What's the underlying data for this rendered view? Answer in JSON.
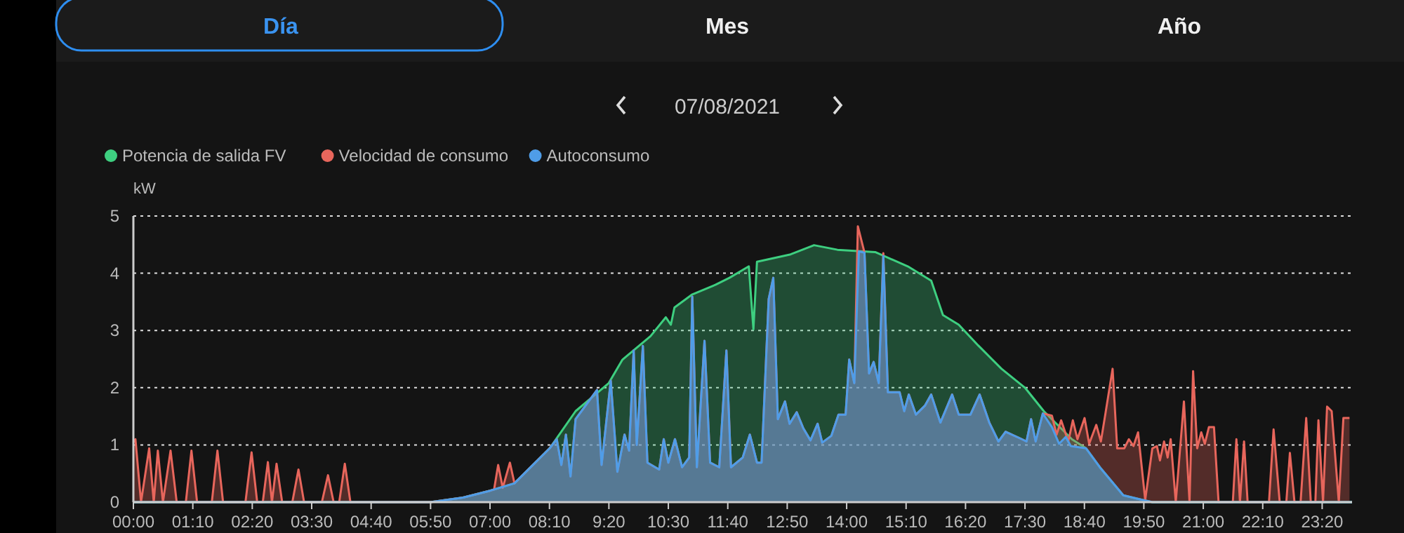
{
  "chart_data": {
    "type": "area",
    "title": "07/08/2021",
    "annotations": [
      "Día",
      "Mes",
      "Año"
    ],
    "ylabel": "kW",
    "xlim": [
      0,
      23.92
    ],
    "ylim": [
      0,
      5
    ],
    "yticks": [
      0,
      1,
      2,
      3,
      4,
      5
    ],
    "xticks": [
      {
        "value": 0,
        "label": "00:00"
      },
      {
        "value": 1.1667,
        "label": "01:10"
      },
      {
        "value": 2.3333,
        "label": "02:20"
      },
      {
        "value": 3.5,
        "label": "03:30"
      },
      {
        "value": 4.6667,
        "label": "04:40"
      },
      {
        "value": 5.8333,
        "label": "05:50"
      },
      {
        "value": 7,
        "label": "07:00"
      },
      {
        "value": 8.1667,
        "label": "08:10"
      },
      {
        "value": 9.3333,
        "label": "9:20"
      },
      {
        "value": 10.5,
        "label": "10:30"
      },
      {
        "value": 11.6667,
        "label": "11:40"
      },
      {
        "value": 12.8333,
        "label": "12:50"
      },
      {
        "value": 14,
        "label": "14:00"
      },
      {
        "value": 15.1667,
        "label": "15:10"
      },
      {
        "value": 16.3333,
        "label": "16:20"
      },
      {
        "value": 17.5,
        "label": "17:30"
      },
      {
        "value": 18.6667,
        "label": "18:40"
      },
      {
        "value": 19.8333,
        "label": "19:50"
      },
      {
        "value": 21,
        "label": "21:00"
      },
      {
        "value": 22.1667,
        "label": "22:10"
      },
      {
        "value": 23.3333,
        "label": "23:20"
      }
    ],
    "grid": "y",
    "legend": "top left",
    "series": [
      {
        "name": "Potencia de salida FV",
        "color": "#3ecf80",
        "x": [
          0,
          5.83,
          6.47,
          7.0,
          7.48,
          8.17,
          8.68,
          9.33,
          9.6,
          10.15,
          10.45,
          10.55,
          10.62,
          10.97,
          11.43,
          11.7,
          12.08,
          12.17,
          12.24,
          12.9,
          13.36,
          13.82,
          14.56,
          15.2,
          15.66,
          15.89,
          16.2,
          16.58,
          17.04,
          17.5,
          17.87,
          18.42,
          18.7,
          18.97,
          19.43,
          19.8,
          20.0,
          23.92
        ],
        "values": [
          0,
          0,
          0.08,
          0.2,
          0.33,
          0.94,
          1.59,
          2.08,
          2.49,
          2.9,
          3.23,
          3.1,
          3.4,
          3.63,
          3.8,
          3.92,
          4.12,
          3.02,
          4.2,
          4.33,
          4.49,
          4.41,
          4.37,
          4.12,
          3.87,
          3.27,
          3.1,
          2.74,
          2.33,
          2.0,
          1.59,
          1.1,
          0.94,
          0.61,
          0.12,
          0.04,
          0,
          0
        ]
      },
      {
        "name": "Velocidad de consumo",
        "color": "#e8665c",
        "x": [
          0,
          0.04,
          0.15,
          0.31,
          0.4,
          0.48,
          0.58,
          0.73,
          0.85,
          1.03,
          1.14,
          1.25,
          1.54,
          1.65,
          1.76,
          2.2,
          2.32,
          2.43,
          2.54,
          2.64,
          2.72,
          2.81,
          2.92,
          3.12,
          3.24,
          3.35,
          3.7,
          3.82,
          3.93,
          4.04,
          4.15,
          4.26,
          5.83,
          6.47,
          7.0,
          7.08,
          7.16,
          7.25,
          7.39,
          7.48,
          8.17,
          8.31,
          8.4,
          8.49,
          8.58,
          8.68,
          9.1,
          9.19,
          9.37,
          9.5,
          9.64,
          9.73,
          9.82,
          9.88,
          10.0,
          10.09,
          10.32,
          10.41,
          10.5,
          10.63,
          10.77,
          10.91,
          10.97,
          11.06,
          11.21,
          11.32,
          11.5,
          11.64,
          11.73,
          11.96,
          12.1,
          12.24,
          12.33,
          12.47,
          12.56,
          12.65,
          12.79,
          12.88,
          13.02,
          13.15,
          13.29,
          13.43,
          13.52,
          13.7,
          13.84,
          13.98,
          14.05,
          14.15,
          14.22,
          14.35,
          14.44,
          14.53,
          14.63,
          14.72,
          14.81,
          15.04,
          15.13,
          15.22,
          15.36,
          15.54,
          15.66,
          15.84,
          16.07,
          16.2,
          16.43,
          16.61,
          16.8,
          16.98,
          17.12,
          17.44,
          17.53,
          17.62,
          17.71,
          17.85,
          18.03,
          18.12,
          18.21,
          18.35,
          18.44,
          18.53,
          18.67,
          18.76,
          18.9,
          18.99,
          19.08,
          19.22,
          19.31,
          19.45,
          19.54,
          19.63,
          19.72,
          19.86,
          20.0,
          20.09,
          20.15,
          20.23,
          20.3,
          20.36,
          20.46,
          20.62,
          20.73,
          20.8,
          20.88,
          20.96,
          21.03,
          21.11,
          21.21,
          21.3,
          21.58,
          21.65,
          21.72,
          21.8,
          21.87,
          22.29,
          22.38,
          22.5,
          22.63,
          22.7,
          22.79,
          22.91,
          23.02,
          23.11,
          23.2,
          23.26,
          23.35,
          23.43,
          23.52,
          23.66,
          23.75,
          23.87
        ],
        "values": [
          1.05,
          1.1,
          0,
          0.94,
          0,
          0.9,
          0,
          0.9,
          0,
          0,
          0.9,
          0,
          0,
          0.9,
          0,
          0,
          0.87,
          0,
          0,
          0.7,
          0,
          0.67,
          0,
          0,
          0.57,
          0,
          0,
          0.47,
          0,
          0,
          0.67,
          0,
          0,
          0.08,
          0.2,
          0.22,
          0.65,
          0.25,
          0.69,
          0.33,
          0.94,
          1.1,
          0.65,
          1.18,
          0.45,
          1.45,
          1.96,
          0.65,
          2.12,
          0.53,
          1.18,
          0.9,
          2.65,
          1.0,
          2.73,
          0.69,
          0.57,
          1.1,
          0.69,
          1.1,
          0.61,
          0.78,
          3.59,
          0.61,
          2.82,
          0.69,
          0.61,
          2.65,
          0.61,
          0.78,
          1.18,
          0.69,
          0.69,
          3.55,
          3.92,
          1.45,
          1.76,
          1.37,
          1.57,
          1.29,
          1.08,
          1.37,
          1.04,
          1.16,
          1.53,
          1.53,
          2.49,
          2.08,
          4.82,
          4.36,
          2.25,
          2.45,
          2.08,
          4.35,
          1.92,
          1.92,
          1.59,
          1.88,
          1.53,
          1.69,
          1.88,
          1.39,
          1.88,
          1.53,
          1.53,
          1.88,
          1.39,
          1.06,
          1.23,
          1.1,
          1.06,
          1.45,
          1.06,
          1.55,
          1.51,
          1.18,
          1.43,
          1.06,
          1.43,
          1.1,
          1.47,
          1.02,
          1.35,
          1.06,
          1.55,
          2.33,
          0.94,
          0.94,
          1.1,
          0.98,
          1.22,
          0.04,
          0.94,
          0.98,
          0.73,
          1.06,
          0.78,
          1.1,
          0,
          1.76,
          0,
          2.29,
          0.94,
          1.22,
          1.02,
          1.31,
          1.31,
          0,
          0,
          1.1,
          0,
          1.06,
          0,
          0,
          1.27,
          0,
          0,
          0.86,
          0,
          0,
          1.47,
          0,
          0,
          1.43,
          0,
          1.67,
          1.59,
          0,
          1.47,
          1.47
        ]
      },
      {
        "name": "Autoconsumo",
        "color": "#4f9de8",
        "x": [
          0,
          5.83,
          6.47,
          7.0,
          7.48,
          8.17,
          8.31,
          8.4,
          8.49,
          8.58,
          8.68,
          9.1,
          9.19,
          9.37,
          9.5,
          9.64,
          9.73,
          9.82,
          9.88,
          10.0,
          10.09,
          10.32,
          10.41,
          10.5,
          10.63,
          10.77,
          10.91,
          10.97,
          11.06,
          11.21,
          11.32,
          11.5,
          11.64,
          11.73,
          11.96,
          12.1,
          12.24,
          12.33,
          12.47,
          12.56,
          12.65,
          12.79,
          12.88,
          13.02,
          13.15,
          13.29,
          13.43,
          13.52,
          13.7,
          13.84,
          13.98,
          14.05,
          14.15,
          14.24,
          14.35,
          14.44,
          14.53,
          14.63,
          14.72,
          14.81,
          15.04,
          15.13,
          15.22,
          15.36,
          15.54,
          15.66,
          15.84,
          16.07,
          16.2,
          16.43,
          16.61,
          16.8,
          16.98,
          17.12,
          17.44,
          17.53,
          17.62,
          17.71,
          17.85,
          18.03,
          18.17,
          18.3,
          18.4,
          18.7,
          18.97,
          19.43,
          19.8,
          20.0,
          23.92
        ],
        "values": [
          0,
          0,
          0.08,
          0.2,
          0.33,
          0.94,
          1.1,
          0.65,
          1.18,
          0.45,
          1.45,
          1.96,
          0.65,
          2.12,
          0.53,
          1.18,
          0.9,
          2.65,
          1.0,
          2.73,
          0.69,
          0.57,
          1.1,
          0.69,
          1.1,
          0.61,
          0.78,
          3.59,
          0.61,
          2.82,
          0.69,
          0.61,
          2.65,
          0.61,
          0.78,
          1.18,
          0.69,
          0.69,
          3.55,
          3.92,
          1.45,
          1.76,
          1.37,
          1.57,
          1.29,
          1.08,
          1.37,
          1.04,
          1.16,
          1.53,
          1.53,
          2.49,
          2.08,
          4.38,
          4.36,
          2.25,
          2.45,
          2.08,
          4.3,
          1.92,
          1.92,
          1.59,
          1.88,
          1.53,
          1.69,
          1.88,
          1.39,
          1.88,
          1.53,
          1.53,
          1.88,
          1.39,
          1.06,
          1.23,
          1.1,
          1.06,
          1.45,
          1.06,
          1.55,
          1.31,
          1.02,
          1.14,
          0.98,
          0.94,
          0.61,
          0.12,
          0.04,
          0,
          0
        ]
      }
    ]
  }
}
